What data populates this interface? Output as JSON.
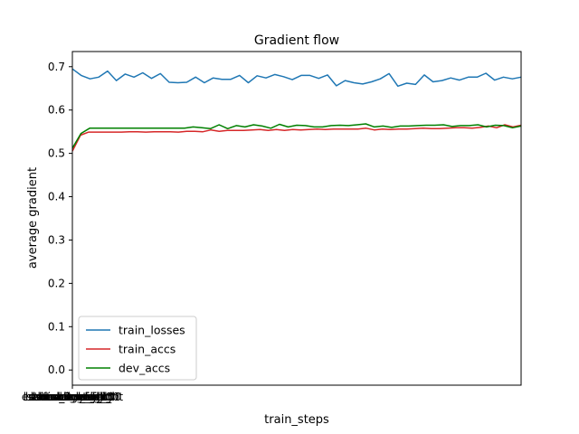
{
  "chart_data": {
    "type": "line",
    "title": "Gradient flow",
    "xlabel": "train_steps",
    "ylabel": "average gradient",
    "xtick_labels": [
      "lstm.weight_ih_l0",
      "lstm.weight_hh_l0",
      "lstm.bias_ih_l0",
      "lstm.bias_hh_l0",
      "linear.weight",
      "linear.bias",
      "embedding.weight",
      "conv_1.weight",
      "conv_2.weight",
      "softmax.weight"
    ],
    "ylim": [
      -0.035,
      0.735
    ],
    "xlim": [
      0,
      99
    ],
    "yticks": [
      0.0,
      0.1,
      0.2,
      0.3,
      0.4,
      0.5,
      0.6,
      0.7
    ],
    "ytick_labels": [
      "0.0",
      "0.1",
      "0.2",
      "0.3",
      "0.4",
      "0.5",
      "0.6",
      "0.7"
    ],
    "grid": false,
    "legend_position": "lower-left",
    "series": [
      {
        "name": "train_losses",
        "color": "#1f77b4",
        "values": [
          0.695,
          0.68,
          0.672,
          0.676,
          0.69,
          0.668,
          0.683,
          0.676,
          0.686,
          0.673,
          0.684,
          0.664,
          0.663,
          0.664,
          0.676,
          0.663,
          0.674,
          0.671,
          0.671,
          0.68,
          0.663,
          0.679,
          0.674,
          0.682,
          0.677,
          0.67,
          0.68,
          0.68,
          0.673,
          0.681,
          0.656,
          0.668,
          0.663,
          0.66,
          0.665,
          0.672,
          0.684,
          0.655,
          0.662,
          0.659,
          0.681,
          0.665,
          0.668,
          0.674,
          0.669,
          0.676,
          0.676,
          0.685,
          0.669,
          0.676,
          0.672,
          0.676
        ]
      },
      {
        "name": "train_accs",
        "color": "#d62728",
        "values": [
          0.505,
          0.542,
          0.549,
          0.549,
          0.549,
          0.549,
          0.549,
          0.55,
          0.55,
          0.549,
          0.55,
          0.55,
          0.55,
          0.549,
          0.551,
          0.551,
          0.55,
          0.554,
          0.551,
          0.553,
          0.553,
          0.553,
          0.554,
          0.555,
          0.553,
          0.555,
          0.553,
          0.555,
          0.554,
          0.555,
          0.556,
          0.555,
          0.556,
          0.556,
          0.556,
          0.556,
          0.558,
          0.554,
          0.556,
          0.555,
          0.556,
          0.556,
          0.557,
          0.558,
          0.557,
          0.557,
          0.558,
          0.559,
          0.559,
          0.558,
          0.56,
          0.563,
          0.559,
          0.566,
          0.561,
          0.565
        ]
      },
      {
        "name": "dev_accs",
        "color": "#008000",
        "values": [
          0.512,
          0.546,
          0.558,
          0.558,
          0.558,
          0.558,
          0.558,
          0.558,
          0.558,
          0.558,
          0.558,
          0.558,
          0.558,
          0.558,
          0.561,
          0.559,
          0.557,
          0.566,
          0.557,
          0.564,
          0.561,
          0.566,
          0.563,
          0.558,
          0.567,
          0.561,
          0.565,
          0.564,
          0.561,
          0.561,
          0.564,
          0.565,
          0.564,
          0.566,
          0.568,
          0.561,
          0.563,
          0.56,
          0.563,
          0.563,
          0.564,
          0.565,
          0.565,
          0.566,
          0.562,
          0.564,
          0.564,
          0.566,
          0.561,
          0.565,
          0.564,
          0.559,
          0.563
        ]
      }
    ]
  }
}
